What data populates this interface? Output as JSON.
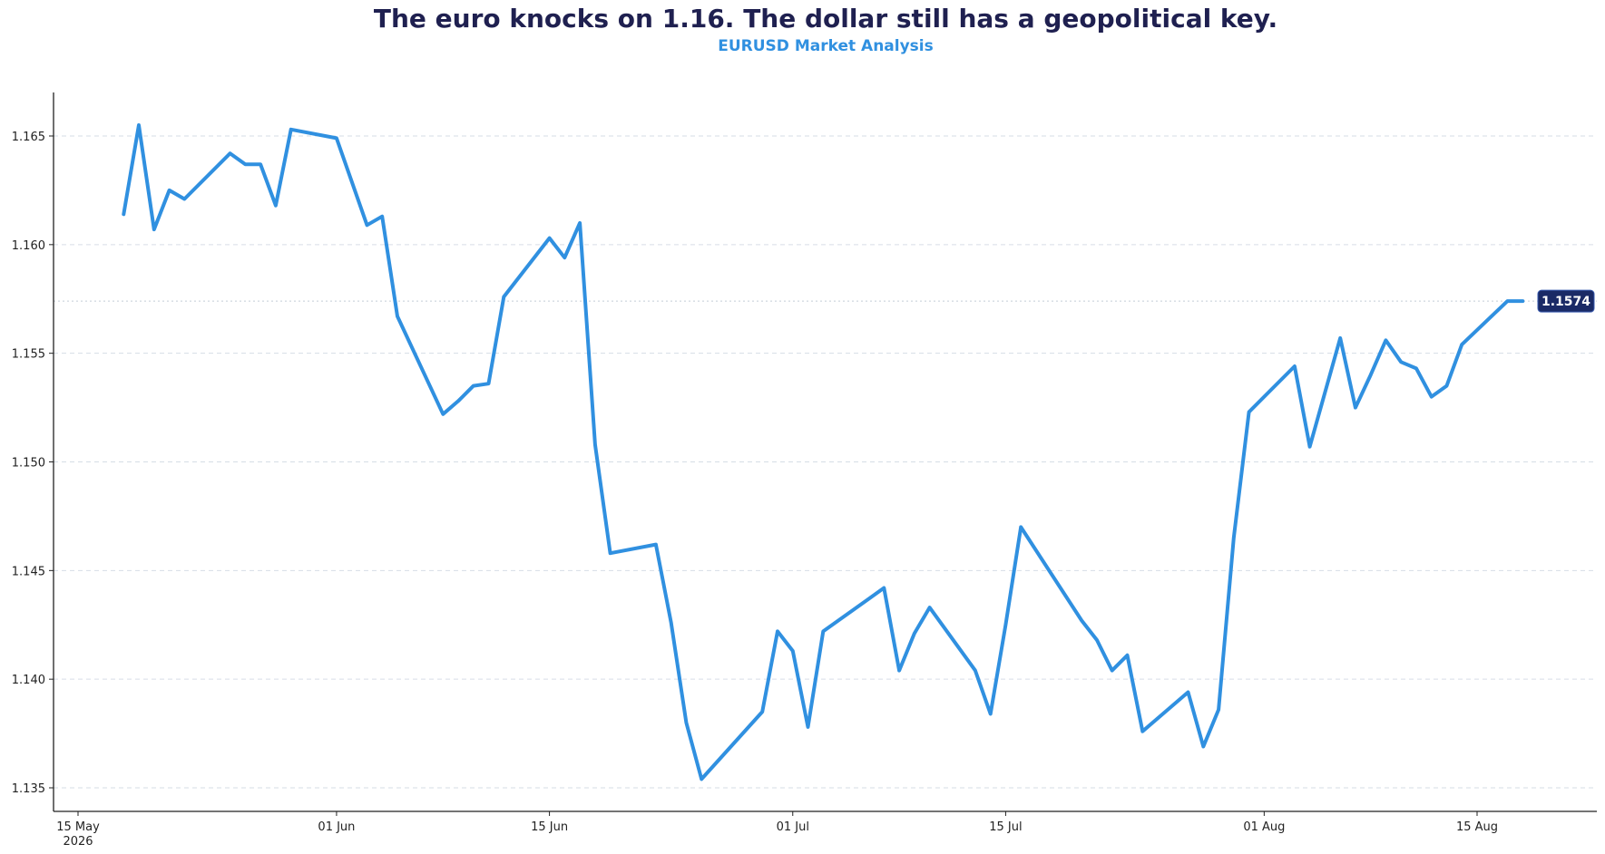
{
  "colors": {
    "title": "#1f2050",
    "subtitle": "#3090e0",
    "line": "#3090e0",
    "grid": "#d6dde6",
    "axis": "#222222",
    "last_label_bg": "#1a2a66",
    "last_label_text": "#ffffff"
  },
  "chart_data": {
    "type": "line",
    "title": "The euro knocks on 1.16. The dollar still has a geopolitical key.",
    "subtitle": "EURUSD Market Analysis",
    "xlabel": "",
    "ylabel": "",
    "xlim": [
      "2026-05-15",
      "2026-08-25"
    ],
    "ylim": [
      1.1345,
      1.167
    ],
    "grid": {
      "x": false,
      "y": true,
      "style": "dashed"
    },
    "legend": "none",
    "x_ticks": [
      {
        "date": "2026-05-15",
        "label": "15 May",
        "sublabel": "2026"
      },
      {
        "date": "2026-06-01",
        "label": "01 Jun"
      },
      {
        "date": "2026-06-15",
        "label": "15 Jun"
      },
      {
        "date": "2026-07-01",
        "label": "01 Jul"
      },
      {
        "date": "2026-07-15",
        "label": "15 Jul"
      },
      {
        "date": "2026-08-01",
        "label": "01 Aug"
      },
      {
        "date": "2026-08-15",
        "label": "15 Aug"
      }
    ],
    "y_ticks": [
      "1.135",
      "1.140",
      "1.145",
      "1.150",
      "1.155",
      "1.160",
      "1.165"
    ],
    "last_value": {
      "date": "2026-08-18",
      "value": 1.1574,
      "label": "1.1574"
    },
    "series": [
      {
        "x": [
          "2026-05-18",
          "2026-05-19",
          "2026-05-20",
          "2026-05-21",
          "2026-05-22",
          "2026-05-25",
          "2026-05-26",
          "2026-05-27",
          "2026-05-28",
          "2026-05-29",
          "2026-06-01",
          "2026-06-03",
          "2026-06-04",
          "2026-06-05",
          "2026-06-08",
          "2026-06-09",
          "2026-06-10",
          "2026-06-11",
          "2026-06-12",
          "2026-06-15",
          "2026-06-16",
          "2026-06-17",
          "2026-06-18",
          "2026-06-19",
          "2026-06-22",
          "2026-06-23",
          "2026-06-24",
          "2026-06-25",
          "2026-06-29",
          "2026-06-30",
          "2026-07-01",
          "2026-07-02",
          "2026-07-03",
          "2026-07-06",
          "2026-07-07",
          "2026-07-08",
          "2026-07-09",
          "2026-07-10",
          "2026-07-13",
          "2026-07-14",
          "2026-07-15",
          "2026-07-16",
          "2026-07-20",
          "2026-07-21",
          "2026-07-22",
          "2026-07-23",
          "2026-07-24",
          "2026-07-27",
          "2026-07-28",
          "2026-07-29",
          "2026-07-30",
          "2026-07-31",
          "2026-08-03",
          "2026-08-04",
          "2026-08-05",
          "2026-08-06",
          "2026-08-07",
          "2026-08-08",
          "2026-08-09",
          "2026-08-10",
          "2026-08-11",
          "2026-08-12",
          "2026-08-13",
          "2026-08-14",
          "2026-08-17",
          "2026-08-18"
        ],
        "values": [
          1.1614,
          1.1655,
          1.1607,
          1.1625,
          1.1621,
          1.1642,
          1.1637,
          1.1637,
          1.1618,
          1.1653,
          1.1649,
          1.1609,
          1.1613,
          1.1567,
          1.1522,
          1.1528,
          1.1535,
          1.1536,
          1.1576,
          1.1603,
          1.1594,
          1.161,
          1.1508,
          1.1458,
          1.1462,
          1.1426,
          1.138,
          1.1354,
          1.1385,
          1.1422,
          1.1413,
          1.1378,
          1.1422,
          1.1437,
          1.1442,
          1.1404,
          1.1421,
          1.1433,
          1.1404,
          1.1384,
          1.1425,
          1.147,
          1.1427,
          1.1418,
          1.1404,
          1.1411,
          1.1376,
          1.1394,
          1.1369,
          1.1386,
          1.1465,
          1.1523,
          1.1544,
          1.1507,
          1.1532,
          1.1557,
          1.1525,
          1.154,
          1.1556,
          1.1546,
          1.1543,
          1.153,
          1.1535,
          1.1554,
          1.1574,
          1.1574
        ]
      }
    ]
  }
}
